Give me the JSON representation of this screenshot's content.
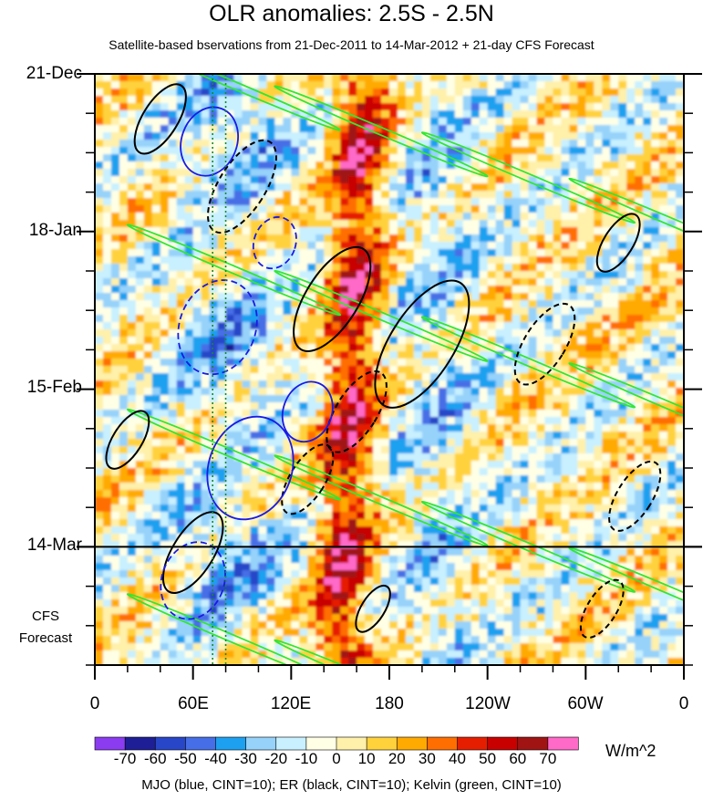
{
  "title": "OLR anomalies: 2.5S - 2.5N",
  "subtitle": "Satellite-based bservations from 21-Dec-2011 to 14-Mar-2012 + 21-day CFS Forecast",
  "caption": "MJO (blue, CINT=10); ER (black, CINT=10); Kelvin (green, CINT=10)",
  "cfs_note_line1": "CFS",
  "cfs_note_line2": "Forecast",
  "units": "W/m^2",
  "colors": {
    "mjo": "#1a1ae6",
    "er": "#000000",
    "kelvin": "#33e633",
    "colorbar": [
      "#8c3cf0",
      "#1e1e96",
      "#2846c8",
      "#466ee6",
      "#1ea0f0",
      "#96d2fa",
      "#c8f0ff",
      "#ffffe6",
      "#fff0aa",
      "#ffd23c",
      "#ffaa00",
      "#ff6e00",
      "#e61e00",
      "#c80000",
      "#a01414",
      "#ff69c8"
    ]
  },
  "chart_data": {
    "type": "heatmap",
    "title": "OLR anomalies: 2.5S - 2.5N",
    "xlabel": "",
    "ylabel": "",
    "x_ticks": [
      "0",
      "60E",
      "120E",
      "180",
      "120W",
      "60W",
      "0"
    ],
    "x_tick_values": [
      0,
      60,
      120,
      180,
      240,
      300,
      360
    ],
    "xlim": [
      0,
      360
    ],
    "y_ticks": [
      "21-Dec",
      "18-Jan",
      "15-Feb",
      "14-Mar"
    ],
    "y_tick_values": [
      0,
      28,
      56,
      84
    ],
    "ylim": [
      0,
      105
    ],
    "observation_end": "14-Mar",
    "forecast_days": 21,
    "colorbar_levels": [
      -70,
      -60,
      -50,
      -40,
      -30,
      -20,
      -10,
      0,
      10,
      20,
      30,
      40,
      50,
      60,
      70
    ],
    "colorbar_labels": [
      "-70",
      "-60",
      "-50",
      "-40",
      "-30",
      "-20",
      "-10",
      "0",
      "10",
      "20",
      "30",
      "40",
      "50",
      "60",
      "70"
    ],
    "units": "W/m^2",
    "overlays": [
      {
        "name": "MJO",
        "color": "blue",
        "cint": 10
      },
      {
        "name": "ER",
        "color": "black",
        "cint": 10
      },
      {
        "name": "Kelvin",
        "color": "green",
        "cint": 10
      }
    ],
    "reference_lines": [
      {
        "type": "vertical",
        "lon": [
          72,
          80
        ],
        "style": "dotted-green"
      }
    ]
  }
}
